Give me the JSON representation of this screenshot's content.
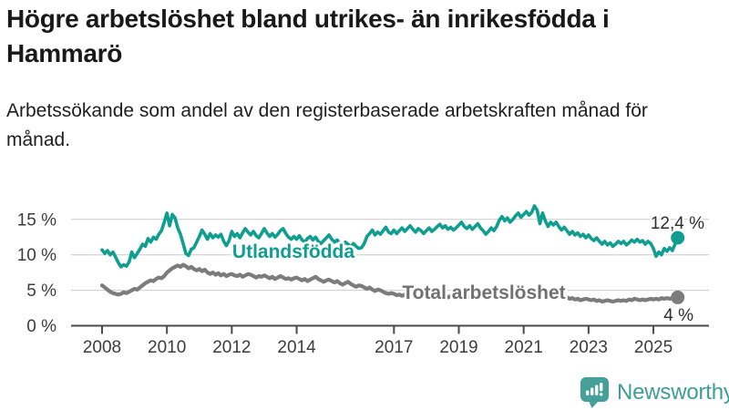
{
  "header": {
    "title": "Högre arbetslöshet bland utrikes- än inrikesfödda i Hammarö",
    "subtitle": "Arbetssökande som andel av den registerbaserade arbetskraften månad för månad."
  },
  "footer": {
    "brand": "Newsworthy",
    "brand_color": "#3f9d96"
  },
  "chart_data": {
    "type": "line",
    "title": "Högre arbetslöshet bland utrikes- än inrikesfödda i Hammarö",
    "x_unit": "month",
    "x_start": {
      "year": 2008,
      "month": 1
    },
    "x_end": {
      "year": 2025,
      "month": 10
    },
    "x_ticks": [
      {
        "year": 2008,
        "label": "2008"
      },
      {
        "year": 2010,
        "label": "2010"
      },
      {
        "year": 2012,
        "label": "2012"
      },
      {
        "year": 2014,
        "label": "2014"
      },
      {
        "year": 2017,
        "label": "2017"
      },
      {
        "year": 2019,
        "label": "2019"
      },
      {
        "year": 2021,
        "label": "2021"
      },
      {
        "year": 2023,
        "label": "2023"
      },
      {
        "year": 2025,
        "label": "2025"
      }
    ],
    "y_ticks": [
      {
        "value": 0,
        "label": "0 %"
      },
      {
        "value": 5,
        "label": "5 %"
      },
      {
        "value": 10,
        "label": "10 %"
      },
      {
        "value": 15,
        "label": "15 %"
      }
    ],
    "ylim": [
      0,
      17.5
    ],
    "grid": true,
    "legend_position": "inline-labels",
    "series": [
      {
        "id": "total",
        "name": "Total arbetslöshet",
        "color": "#7c7c7c",
        "label_color": "#717171",
        "end_label": "4 %",
        "end_value": 4.0,
        "values": [
          5.7,
          5.4,
          5.1,
          4.8,
          4.6,
          4.5,
          4.4,
          4.5,
          4.7,
          4.6,
          4.8,
          5.0,
          5.2,
          5.1,
          5.4,
          5.7,
          6.0,
          6.2,
          6.4,
          6.3,
          6.6,
          6.8,
          6.7,
          7.0,
          7.5,
          7.8,
          8.1,
          8.3,
          8.5,
          8.3,
          8.6,
          8.4,
          8.1,
          8.3,
          8.0,
          7.8,
          8.0,
          7.7,
          7.9,
          7.5,
          7.3,
          7.5,
          7.2,
          7.4,
          7.1,
          7.3,
          7.0,
          7.2,
          7.3,
          7.1,
          7.0,
          7.2,
          6.9,
          7.1,
          7.3,
          7.2,
          7.0,
          6.8,
          7.0,
          6.9,
          7.1,
          6.9,
          6.7,
          6.9,
          6.6,
          6.8,
          7.0,
          6.8,
          6.6,
          6.7,
          6.5,
          6.7,
          6.8,
          6.6,
          6.4,
          6.6,
          6.3,
          6.5,
          6.7,
          6.9,
          6.6,
          6.4,
          6.2,
          6.4,
          6.5,
          6.3,
          6.1,
          6.3,
          6.0,
          5.8,
          6.0,
          6.2,
          5.9,
          5.7,
          5.5,
          5.7,
          5.6,
          5.4,
          5.2,
          5.4,
          5.1,
          4.9,
          5.1,
          5.0,
          4.8,
          4.6,
          4.5,
          4.6,
          4.5,
          4.3,
          4.4,
          4.2,
          4.4,
          4.6,
          4.4,
          4.3,
          4.5,
          4.3,
          4.2,
          4.3,
          4.2,
          4.4,
          4.2,
          4.1,
          4.3,
          4.5,
          4.3,
          4.2,
          4.0,
          4.2,
          4.1,
          4.2,
          4.1,
          4.0,
          4.2,
          4.0,
          4.1,
          4.3,
          4.5,
          4.3,
          4.2,
          4.1,
          4.2,
          4.4,
          4.5,
          4.4,
          4.6,
          5.0,
          5.1,
          4.9,
          5.0,
          4.8,
          4.9,
          4.7,
          4.6,
          4.7,
          4.8,
          4.6,
          4.7,
          4.5,
          4.6,
          4.4,
          4.5,
          4.3,
          4.2,
          4.1,
          4.0,
          4.1,
          4.2,
          4.0,
          4.1,
          3.9,
          4.0,
          3.8,
          3.9,
          3.7,
          3.8,
          3.6,
          3.7,
          3.8,
          3.7,
          3.6,
          3.7,
          3.5,
          3.6,
          3.4,
          3.5,
          3.6,
          3.5,
          3.4,
          3.5,
          3.6,
          3.5,
          3.6,
          3.5,
          3.7,
          3.6,
          3.8,
          3.7,
          3.6,
          3.7,
          3.6,
          3.7,
          3.8,
          3.7,
          3.8,
          3.7,
          3.9,
          3.8,
          3.9,
          3.8,
          3.9,
          3.9,
          4.0
        ]
      },
      {
        "id": "utlandsfodda",
        "name": "Utlandsfödda",
        "color": "#0f9e90",
        "label_color": "#0f9e90",
        "end_label": "12,4 %",
        "end_value": 12.4,
        "values": [
          10.7,
          10.2,
          10.6,
          10.0,
          10.4,
          9.7,
          8.9,
          8.3,
          8.6,
          8.4,
          9.0,
          10.4,
          9.6,
          10.2,
          10.8,
          11.5,
          11.2,
          12.3,
          11.8,
          12.5,
          12.2,
          12.9,
          13.4,
          14.6,
          15.9,
          14.1,
          15.7,
          15.2,
          13.8,
          12.9,
          11.6,
          10.2,
          9.9,
          10.8,
          11.0,
          11.8,
          12.6,
          13.5,
          12.9,
          12.2,
          13.0,
          12.4,
          12.8,
          12.5,
          12.9,
          11.9,
          11.3,
          12.0,
          13.3,
          12.6,
          13.0,
          12.4,
          13.1,
          13.7,
          13.2,
          12.8,
          13.3,
          12.7,
          12.4,
          13.0,
          13.7,
          13.1,
          12.6,
          13.0,
          12.5,
          12.9,
          13.4,
          13.7,
          13.0,
          12.5,
          12.2,
          12.6,
          12.2,
          12.7,
          12.1,
          11.8,
          12.3,
          12.6,
          12.1,
          12.5,
          11.9,
          11.6,
          12.0,
          12.4,
          12.8,
          12.2,
          11.8,
          12.1,
          11.6,
          11.3,
          11.8,
          11.5,
          11.1,
          11.6,
          11.2,
          10.9,
          11.0,
          11.6,
          12.6,
          13.0,
          13.5,
          12.8,
          13.2,
          12.9,
          13.4,
          13.9,
          13.2,
          13.0,
          13.5,
          13.0,
          13.4,
          13.8,
          13.3,
          13.7,
          14.1,
          13.6,
          13.2,
          13.7,
          13.4,
          13.0,
          13.4,
          13.8,
          13.3,
          13.6,
          14.0,
          14.3,
          13.8,
          14.1,
          13.6,
          13.9,
          13.5,
          13.8,
          14.2,
          14.6,
          14.0,
          13.7,
          14.1,
          13.6,
          14.0,
          14.4,
          13.8,
          13.4,
          12.9,
          13.3,
          13.8,
          13.4,
          14.0,
          14.9,
          15.4,
          14.8,
          15.2,
          14.6,
          15.0,
          15.5,
          15.9,
          15.3,
          15.7,
          16.1,
          15.6,
          16.0,
          16.9,
          16.3,
          14.4,
          15.9,
          14.8,
          14.0,
          14.6,
          14.2,
          14.6,
          14.0,
          13.5,
          13.9,
          13.4,
          12.9,
          13.3,
          12.8,
          13.1,
          12.6,
          12.9,
          12.4,
          12.8,
          12.3,
          12.0,
          12.4,
          11.9,
          11.5,
          11.9,
          11.4,
          11.7,
          11.2,
          11.5,
          11.9,
          11.6,
          11.9,
          11.4,
          11.7,
          12.1,
          11.8,
          12.2,
          11.8,
          12.0,
          11.5,
          11.9,
          11.6,
          10.9,
          9.8,
          10.4,
          10.0,
          10.9,
          10.5,
          11.0,
          10.6,
          11.5,
          12.4
        ]
      }
    ]
  }
}
